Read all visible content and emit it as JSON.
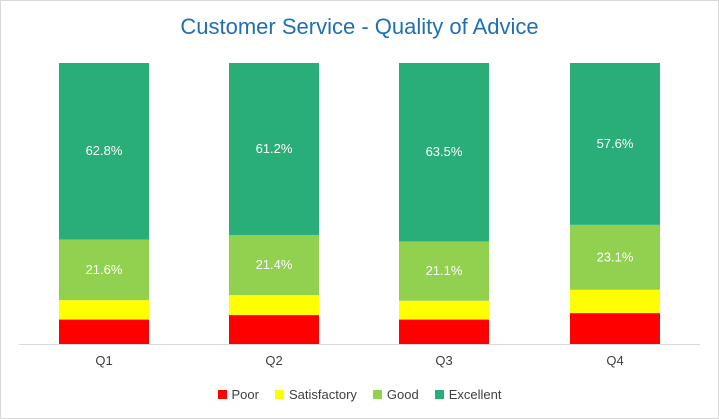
{
  "chart_data": {
    "type": "bar",
    "stacked": true,
    "title": "Customer Service - Quality of Advice",
    "categories": [
      "Q1",
      "Q2",
      "Q3",
      "Q4"
    ],
    "series": [
      {
        "name": "Poor",
        "color": "#ff0000",
        "values": [
          8.7,
          10.3,
          8.7,
          11.0
        ],
        "labels": [
          null,
          null,
          null,
          null
        ]
      },
      {
        "name": "Satisfactory",
        "color": "#ffff00",
        "values": [
          6.9,
          7.1,
          6.7,
          8.3
        ],
        "labels": [
          null,
          null,
          null,
          null
        ]
      },
      {
        "name": "Good",
        "color": "#92d050",
        "values": [
          21.6,
          21.4,
          21.1,
          23.1
        ],
        "labels": [
          "21.6%",
          "21.4%",
          "21.1%",
          "23.1%"
        ]
      },
      {
        "name": "Excellent",
        "color": "#2aae78",
        "values": [
          62.8,
          61.2,
          63.5,
          57.6
        ],
        "labels": [
          "62.8%",
          "61.2%",
          "63.5%",
          "57.6%"
        ]
      }
    ],
    "ylim": [
      0,
      100
    ],
    "legend_position": "bottom",
    "grid": false
  }
}
